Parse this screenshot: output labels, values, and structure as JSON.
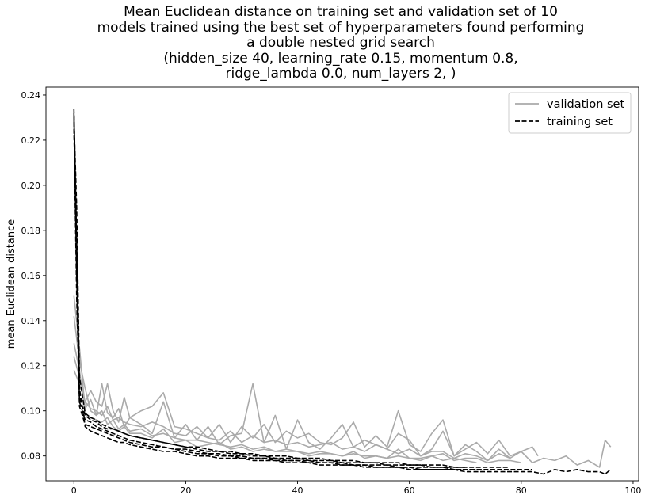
{
  "chart_data": {
    "type": "line",
    "title_lines": [
      "Mean Euclidean distance on training set and validation set of 10",
      "models trained using the best set of hyperparameters found performing",
      "a double nested grid search",
      "(hidden_size 40, learning_rate 0.15, momentum 0.8,",
      "ridge_lambda 0.0, num_layers 2, )"
    ],
    "xlabel": "",
    "ylabel": "mean Euclidean distance",
    "xlim": [
      -5,
      101
    ],
    "ylim": [
      0.069,
      0.2435
    ],
    "xticks": [
      0,
      20,
      40,
      60,
      80,
      100
    ],
    "yticks": [
      0.08,
      0.1,
      0.12,
      0.14,
      0.16,
      0.18,
      0.2,
      0.22,
      0.24
    ],
    "ytick_labels": [
      "0.08",
      "0.10",
      "0.12",
      "0.14",
      "0.16",
      "0.18",
      "0.20",
      "0.22",
      "0.24"
    ],
    "legend": {
      "position": "top-right",
      "entries": [
        "validation set",
        "training set"
      ]
    },
    "series": [
      {
        "name": "validation set",
        "color": "#aaaaaa",
        "style": "solid",
        "x": [
          0,
          1,
          2,
          3,
          4,
          5,
          6,
          7,
          8,
          9,
          10,
          12,
          14,
          16,
          18,
          20,
          22,
          24,
          26,
          28,
          30,
          32,
          34,
          36,
          38,
          40,
          42,
          44,
          46,
          48,
          50,
          52,
          54,
          56,
          58,
          60,
          62,
          64,
          66,
          68,
          70,
          72,
          74,
          76,
          78,
          80,
          82,
          84,
          86,
          88,
          90,
          92,
          94,
          95,
          96
        ],
        "values": [
          0.151,
          0.128,
          0.101,
          0.105,
          0.098,
          0.112,
          0.099,
          0.097,
          0.101,
          0.093,
          0.097,
          0.094,
          0.09,
          0.104,
          0.088,
          0.094,
          0.087,
          0.093,
          0.085,
          0.089,
          0.09,
          0.112,
          0.086,
          0.098,
          0.083,
          0.096,
          0.086,
          0.083,
          0.088,
          0.094,
          0.084,
          0.087,
          0.085,
          0.083,
          0.09,
          0.087,
          0.08,
          0.083,
          0.091,
          0.08,
          0.085,
          0.082,
          0.078,
          0.081,
          0.079,
          0.082,
          0.077,
          0.079,
          0.078,
          0.08,
          0.076,
          0.078,
          0.075,
          0.087,
          0.084
        ]
      },
      {
        "name": "",
        "color": "#aaaaaa",
        "style": "solid",
        "x": [
          0,
          1,
          2,
          3,
          4,
          5,
          6,
          7,
          8,
          9,
          10,
          12,
          14,
          16,
          18,
          20,
          22,
          24,
          26,
          28,
          30,
          32,
          34,
          36,
          38,
          40,
          42,
          44,
          46,
          48,
          50,
          52,
          54,
          56,
          58,
          60,
          62,
          64,
          66,
          68,
          70,
          72,
          74,
          76,
          78,
          80,
          82,
          83
        ],
        "values": [
          0.124,
          0.115,
          0.104,
          0.109,
          0.104,
          0.102,
          0.112,
          0.1,
          0.095,
          0.106,
          0.097,
          0.1,
          0.102,
          0.108,
          0.093,
          0.092,
          0.09,
          0.088,
          0.094,
          0.086,
          0.093,
          0.088,
          0.094,
          0.086,
          0.091,
          0.088,
          0.09,
          0.086,
          0.085,
          0.088,
          0.095,
          0.084,
          0.089,
          0.084,
          0.1,
          0.085,
          0.082,
          0.09,
          0.096,
          0.08,
          0.083,
          0.086,
          0.081,
          0.087,
          0.08,
          0.082,
          0.084,
          0.08
        ]
      },
      {
        "name": "",
        "color": "#aaaaaa",
        "style": "solid",
        "x": [
          0,
          1,
          2,
          3,
          4,
          5,
          6,
          7,
          8,
          9,
          10,
          12,
          14,
          16,
          18,
          20,
          22,
          24,
          26,
          28,
          30,
          32,
          34,
          36,
          38,
          40,
          42,
          44,
          46,
          48,
          50,
          52,
          54,
          56,
          58,
          60,
          62,
          64,
          66,
          68,
          70,
          72,
          74,
          76,
          78,
          80
        ],
        "values": [
          0.13,
          0.118,
          0.099,
          0.097,
          0.096,
          0.095,
          0.097,
          0.093,
          0.091,
          0.093,
          0.09,
          0.09,
          0.088,
          0.092,
          0.086,
          0.087,
          0.084,
          0.085,
          0.086,
          0.083,
          0.084,
          0.082,
          0.083,
          0.082,
          0.082,
          0.082,
          0.08,
          0.081,
          0.081,
          0.08,
          0.082,
          0.079,
          0.08,
          0.079,
          0.083,
          0.079,
          0.078,
          0.08,
          0.081,
          0.078,
          0.079,
          0.079,
          0.077,
          0.078,
          0.078,
          0.077
        ]
      },
      {
        "name": "",
        "color": "#aaaaaa",
        "style": "solid",
        "x": [
          0,
          1,
          2,
          3,
          4,
          5,
          6,
          7,
          8,
          9,
          10,
          12,
          14,
          16,
          18,
          20,
          22,
          24,
          26,
          28,
          30,
          32,
          34,
          36,
          38,
          40,
          42,
          44,
          46,
          48,
          50,
          52,
          54,
          56,
          58,
          60,
          62,
          64,
          66,
          68,
          70,
          72,
          74,
          76,
          78
        ],
        "values": [
          0.118,
          0.112,
          0.104,
          0.101,
          0.1,
          0.098,
          0.102,
          0.096,
          0.097,
          0.095,
          0.094,
          0.093,
          0.095,
          0.093,
          0.09,
          0.089,
          0.093,
          0.088,
          0.087,
          0.091,
          0.086,
          0.089,
          0.086,
          0.087,
          0.085,
          0.086,
          0.084,
          0.085,
          0.086,
          0.083,
          0.084,
          0.082,
          0.085,
          0.083,
          0.081,
          0.083,
          0.08,
          0.082,
          0.082,
          0.079,
          0.081,
          0.08,
          0.078,
          0.083,
          0.079
        ]
      },
      {
        "name": "",
        "color": "#aaaaaa",
        "style": "solid",
        "x": [
          0,
          1,
          2,
          3,
          4,
          5,
          6,
          7,
          8,
          9,
          10,
          12,
          14,
          16,
          18,
          20,
          22,
          24,
          26,
          28,
          30,
          32,
          34,
          36,
          38,
          40,
          42,
          44,
          46,
          48,
          50,
          52,
          54,
          56,
          58,
          60,
          62,
          64,
          66,
          68,
          70,
          72
        ],
        "values": [
          0.142,
          0.122,
          0.11,
          0.1,
          0.098,
          0.1,
          0.094,
          0.096,
          0.092,
          0.094,
          0.091,
          0.092,
          0.089,
          0.09,
          0.088,
          0.087,
          0.087,
          0.086,
          0.085,
          0.084,
          0.085,
          0.083,
          0.084,
          0.082,
          0.083,
          0.082,
          0.081,
          0.082,
          0.081,
          0.08,
          0.081,
          0.08,
          0.08,
          0.079,
          0.08,
          0.079,
          0.079,
          0.08,
          0.078,
          0.079,
          0.078,
          0.077
        ]
      },
      {
        "name": "training set",
        "color": "#000000",
        "style": "dashed",
        "x": [
          0,
          0.5,
          1,
          2,
          3,
          4,
          5,
          6,
          7,
          8,
          9,
          10,
          12,
          14,
          16,
          18,
          20,
          22,
          24,
          26,
          28,
          30,
          32,
          34,
          36,
          38,
          40,
          42,
          44,
          46,
          48,
          50,
          52,
          54,
          56,
          58,
          60,
          62,
          64,
          66,
          68,
          70,
          72,
          74,
          76,
          78,
          80,
          82,
          84,
          86,
          88,
          90,
          92,
          94,
          95,
          96
        ],
        "values": [
          0.234,
          0.175,
          0.11,
          0.093,
          0.091,
          0.09,
          0.089,
          0.088,
          0.087,
          0.086,
          0.086,
          0.085,
          0.084,
          0.083,
          0.082,
          0.082,
          0.081,
          0.08,
          0.08,
          0.079,
          0.079,
          0.079,
          0.078,
          0.078,
          0.078,
          0.077,
          0.077,
          0.077,
          0.076,
          0.076,
          0.076,
          0.076,
          0.075,
          0.075,
          0.075,
          0.075,
          0.074,
          0.074,
          0.074,
          0.074,
          0.074,
          0.073,
          0.073,
          0.073,
          0.073,
          0.073,
          0.073,
          0.073,
          0.072,
          0.074,
          0.073,
          0.074,
          0.073,
          0.073,
          0.072,
          0.074
        ]
      },
      {
        "name": "",
        "color": "#000000",
        "style": "dashed",
        "x": [
          0,
          0.5,
          1,
          2,
          3,
          4,
          5,
          6,
          7,
          8,
          9,
          10,
          12,
          14,
          16,
          18,
          20,
          22,
          24,
          26,
          28,
          30,
          32,
          34,
          36,
          38,
          40,
          42,
          44,
          46,
          48,
          50,
          52,
          54,
          56,
          58,
          60,
          62,
          64,
          66,
          68,
          70,
          72,
          74,
          76,
          78,
          80,
          82
        ],
        "values": [
          0.232,
          0.16,
          0.104,
          0.096,
          0.095,
          0.093,
          0.092,
          0.091,
          0.09,
          0.089,
          0.088,
          0.087,
          0.086,
          0.085,
          0.084,
          0.083,
          0.083,
          0.082,
          0.081,
          0.081,
          0.08,
          0.08,
          0.079,
          0.079,
          0.079,
          0.078,
          0.078,
          0.078,
          0.077,
          0.077,
          0.077,
          0.076,
          0.076,
          0.076,
          0.076,
          0.075,
          0.075,
          0.075,
          0.075,
          0.075,
          0.074,
          0.074,
          0.074,
          0.074,
          0.074,
          0.074,
          0.074,
          0.074
        ]
      },
      {
        "name": "",
        "color": "#000000",
        "style": "dashed",
        "x": [
          0,
          0.5,
          1,
          2,
          3,
          4,
          5,
          6,
          7,
          8,
          9,
          10,
          12,
          14,
          16,
          18,
          20,
          22,
          24,
          26,
          28,
          30,
          32,
          34,
          36,
          38,
          40,
          42,
          44,
          46,
          48,
          50,
          52,
          54,
          56,
          58,
          60,
          62,
          64,
          66,
          68,
          70,
          72,
          74,
          76,
          78
        ],
        "values": [
          0.228,
          0.15,
          0.106,
          0.098,
          0.096,
          0.095,
          0.093,
          0.092,
          0.092,
          0.091,
          0.09,
          0.089,
          0.088,
          0.087,
          0.086,
          0.085,
          0.084,
          0.084,
          0.083,
          0.082,
          0.082,
          0.081,
          0.081,
          0.08,
          0.08,
          0.08,
          0.079,
          0.079,
          0.079,
          0.078,
          0.078,
          0.078,
          0.077,
          0.077,
          0.077,
          0.077,
          0.076,
          0.076,
          0.076,
          0.076,
          0.075,
          0.075,
          0.075,
          0.075,
          0.075,
          0.075
        ]
      },
      {
        "name": "",
        "color": "#000000",
        "style": "dashed",
        "x": [
          0,
          0.5,
          1,
          2,
          3,
          4,
          5,
          6,
          7,
          8,
          9,
          10,
          12,
          14,
          16,
          18,
          20,
          22,
          24,
          26,
          28,
          30,
          32,
          34,
          36,
          38,
          40,
          42,
          44,
          46,
          48,
          50,
          52,
          54,
          56,
          58,
          60,
          62,
          64,
          66,
          68,
          70,
          72
        ],
        "values": [
          0.225,
          0.165,
          0.102,
          0.094,
          0.093,
          0.092,
          0.091,
          0.09,
          0.089,
          0.088,
          0.087,
          0.086,
          0.085,
          0.084,
          0.084,
          0.083,
          0.082,
          0.081,
          0.081,
          0.08,
          0.08,
          0.079,
          0.079,
          0.079,
          0.078,
          0.078,
          0.078,
          0.077,
          0.077,
          0.077,
          0.076,
          0.076,
          0.076,
          0.075,
          0.075,
          0.075,
          0.075,
          0.074,
          0.074,
          0.074,
          0.074,
          0.074,
          0.074
        ]
      },
      {
        "name": "",
        "color": "#000000",
        "style": "dashed",
        "x": [
          0,
          0.5,
          1,
          2,
          3,
          4,
          5,
          6,
          7,
          8,
          9,
          10,
          12,
          14,
          16,
          18,
          20,
          22,
          24,
          26,
          28,
          30,
          32,
          34,
          36,
          38,
          40,
          42,
          44,
          46,
          48,
          50,
          52,
          54,
          56,
          58,
          60,
          62,
          64,
          66,
          68,
          70
        ],
        "values": [
          0.23,
          0.19,
          0.115,
          0.099,
          0.097,
          0.096,
          0.094,
          0.093,
          0.092,
          0.091,
          0.09,
          0.089,
          0.088,
          0.087,
          0.086,
          0.085,
          0.084,
          0.083,
          0.082,
          0.082,
          0.081,
          0.081,
          0.08,
          0.08,
          0.079,
          0.079,
          0.079,
          0.078,
          0.078,
          0.078,
          0.077,
          0.077,
          0.077,
          0.077,
          0.076,
          0.076,
          0.076,
          0.076,
          0.075,
          0.075,
          0.075,
          0.075
        ]
      }
    ]
  }
}
